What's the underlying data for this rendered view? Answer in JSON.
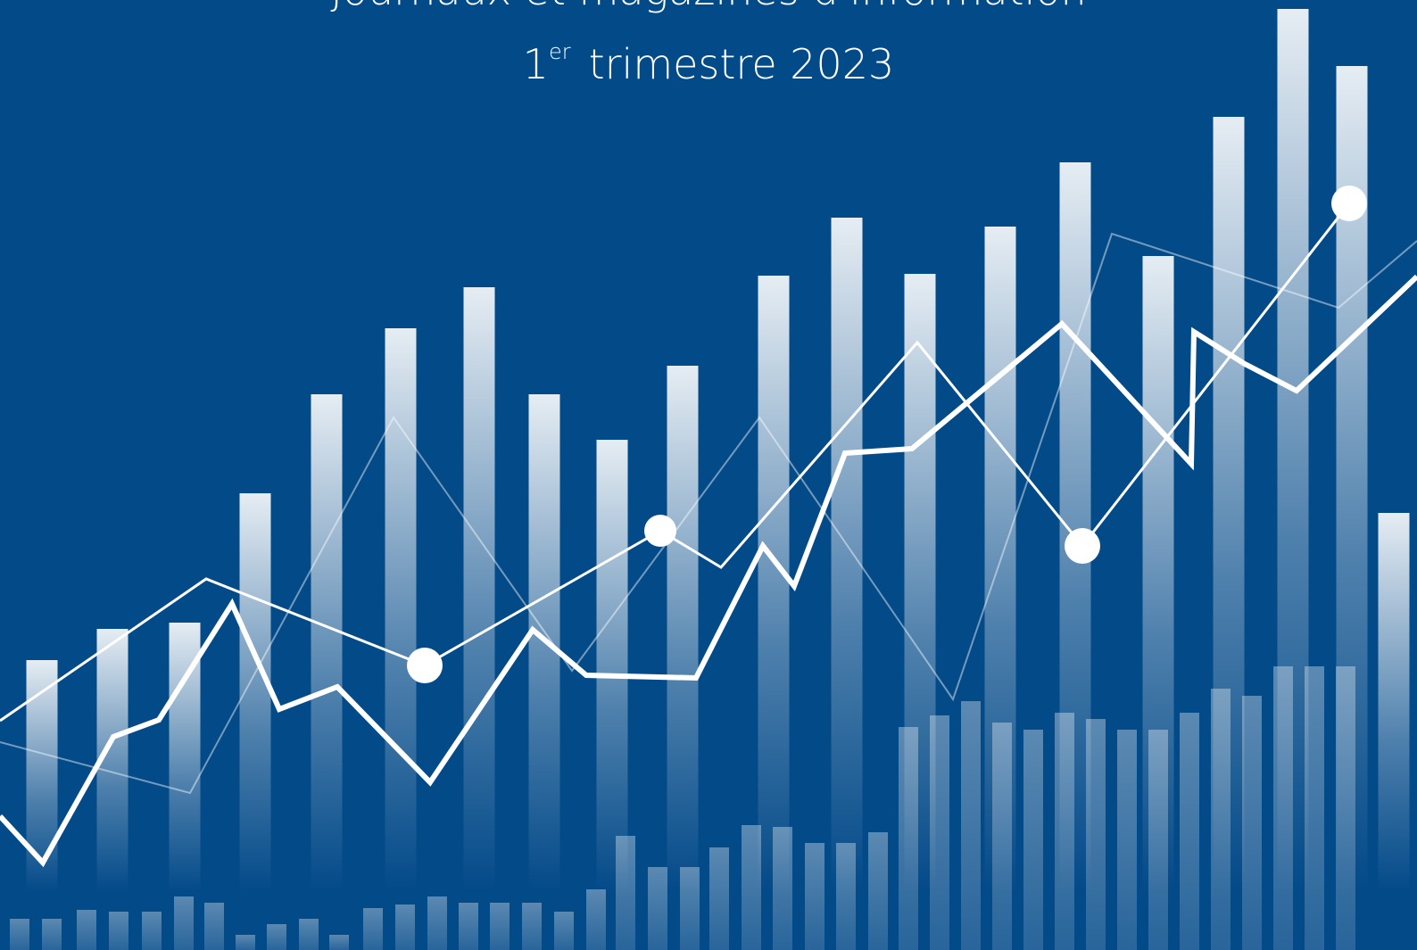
{
  "header": {
    "title": "Journaux et magazines d'information",
    "period": {
      "number": "1",
      "superscript": "er",
      "text": "trimestre 2023"
    }
  }
}
